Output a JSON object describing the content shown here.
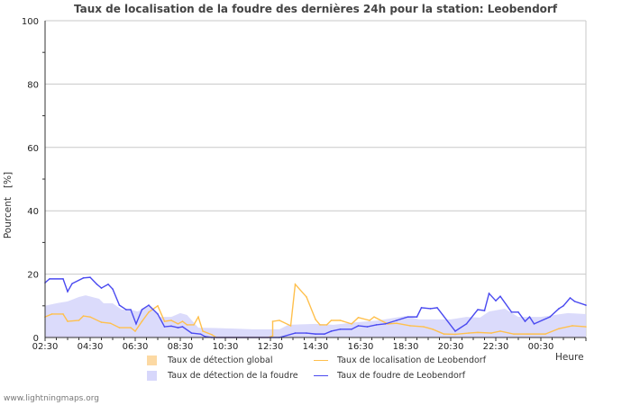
{
  "chart_data": {
    "type": "line",
    "title": "Taux de localisation de la foudre des dernières 24h pour la station: Leobendorf",
    "ylabel": "Pourcent   [%]",
    "xlabel": "Heure",
    "ylim": [
      0,
      100
    ],
    "yticks": [
      "0",
      "20",
      "40",
      "60",
      "80",
      "100"
    ],
    "xlim_hours_from_start": [
      0,
      24
    ],
    "xticks": [
      "02:30",
      "04:30",
      "06:30",
      "08:30",
      "10:30",
      "12:30",
      "14:30",
      "16:30",
      "18:30",
      "20:30",
      "22:30",
      "00:30"
    ],
    "grid": true,
    "legend": [
      {
        "label": "Taux de détection global",
        "kind": "area",
        "color": "#fcd9a3"
      },
      {
        "label": "Taux de localisation de Leobendorf",
        "kind": "line",
        "color": "#ffc04d"
      },
      {
        "label": "Taux de détection de la foudre",
        "kind": "area",
        "color": "#d7d7fb"
      },
      {
        "label": "Taux de foudre de Leobendorf",
        "kind": "line",
        "color": "#4a4af0"
      }
    ],
    "series": [
      {
        "name": "Taux de détection global",
        "type": "area",
        "color": "#e8c9b4",
        "points": [
          [
            0,
            0.7
          ],
          [
            4,
            0.7
          ],
          [
            8,
            0.6
          ],
          [
            12,
            0.5
          ],
          [
            16,
            0.6
          ],
          [
            20,
            0.5
          ],
          [
            24,
            0.6
          ]
        ]
      },
      {
        "name": "Taux de détection de la foudre",
        "type": "area",
        "color": "#d7d7fb",
        "points": [
          [
            0,
            10
          ],
          [
            0.5,
            10.8
          ],
          [
            1,
            11.4
          ],
          [
            1.5,
            12.8
          ],
          [
            1.8,
            13.3
          ],
          [
            2.4,
            12.2
          ],
          [
            2.6,
            10.8
          ],
          [
            3,
            10.8
          ],
          [
            3.4,
            8.8
          ],
          [
            3.8,
            8.8
          ],
          [
            4.1,
            8.2
          ],
          [
            4.6,
            10
          ],
          [
            5.1,
            6.5
          ],
          [
            5.6,
            6.5
          ],
          [
            6,
            7.7
          ],
          [
            6.3,
            7.1
          ],
          [
            6.8,
            3.1
          ],
          [
            7.6,
            3
          ],
          [
            9.2,
            2.6
          ],
          [
            10.4,
            2.6
          ],
          [
            10.8,
            4
          ],
          [
            12,
            4.3
          ],
          [
            12.8,
            4
          ],
          [
            13.8,
            4.8
          ],
          [
            14.8,
            5.4
          ],
          [
            16,
            6.8
          ],
          [
            16.6,
            5.7
          ],
          [
            18,
            5.7
          ],
          [
            18.7,
            6.5
          ],
          [
            19.3,
            6.3
          ],
          [
            19.7,
            8.2
          ],
          [
            20.4,
            9.1
          ],
          [
            21,
            6.5
          ],
          [
            22,
            6.5
          ],
          [
            23.2,
            7.7
          ],
          [
            24,
            7.4
          ]
        ]
      },
      {
        "name": "Taux de localisation de Leobendorf",
        "type": "line",
        "color": "#ffc04d",
        "points": [
          [
            0,
            6.5
          ],
          [
            0.3,
            7.4
          ],
          [
            0.8,
            7.4
          ],
          [
            1,
            5.1
          ],
          [
            1.5,
            5.4
          ],
          [
            1.7,
            6.8
          ],
          [
            2,
            6.5
          ],
          [
            2.5,
            4.8
          ],
          [
            2.9,
            4.5
          ],
          [
            3.3,
            3.1
          ],
          [
            3.8,
            3.1
          ],
          [
            4,
            2
          ],
          [
            4.3,
            5.1
          ],
          [
            4.6,
            8
          ],
          [
            5,
            10
          ],
          [
            5.3,
            5.1
          ],
          [
            5.6,
            5.4
          ],
          [
            5.9,
            4.3
          ],
          [
            6.1,
            5.1
          ],
          [
            6.3,
            4
          ],
          [
            6.6,
            4
          ],
          [
            6.8,
            6.5
          ],
          [
            7,
            2
          ],
          [
            7.4,
            0.9
          ],
          [
            7.6,
            0
          ],
          [
            9.9,
            0
          ],
          [
            10.1,
            0.5
          ],
          [
            10.1,
            5.1
          ],
          [
            10.4,
            5.4
          ],
          [
            10.9,
            3.7
          ],
          [
            11.1,
            16.8
          ],
          [
            11.6,
            12.8
          ],
          [
            12,
            5.7
          ],
          [
            12.2,
            4
          ],
          [
            12.5,
            4
          ],
          [
            12.7,
            5.4
          ],
          [
            13.1,
            5.4
          ],
          [
            13.6,
            4.3
          ],
          [
            13.9,
            6.3
          ],
          [
            14.4,
            5.4
          ],
          [
            14.6,
            6.5
          ],
          [
            15.2,
            4.3
          ],
          [
            15.6,
            4.5
          ],
          [
            16.2,
            3.7
          ],
          [
            16.8,
            3.4
          ],
          [
            17.2,
            2.6
          ],
          [
            17.7,
            1.1
          ],
          [
            18.2,
            1
          ],
          [
            18.8,
            1.4
          ],
          [
            19.2,
            1.6
          ],
          [
            19.8,
            1.4
          ],
          [
            20.2,
            2
          ],
          [
            20.8,
            1.1
          ],
          [
            21.4,
            1.1
          ],
          [
            22.2,
            1.1
          ],
          [
            22.8,
            2.8
          ],
          [
            23.4,
            3.7
          ],
          [
            24,
            3.4
          ]
        ]
      },
      {
        "name": "Taux de foudre de Leobendorf",
        "type": "line",
        "color": "#4a4af0",
        "points": [
          [
            0,
            17.3
          ],
          [
            0.2,
            18.5
          ],
          [
            0.8,
            18.5
          ],
          [
            1,
            14.5
          ],
          [
            1.2,
            17
          ],
          [
            1.7,
            18.8
          ],
          [
            2,
            19
          ],
          [
            2.3,
            16.8
          ],
          [
            2.5,
            15.6
          ],
          [
            2.8,
            16.8
          ],
          [
            3,
            15.3
          ],
          [
            3.3,
            10.2
          ],
          [
            3.6,
            8.8
          ],
          [
            3.8,
            8.8
          ],
          [
            4.04,
            4.3
          ],
          [
            4.3,
            8.8
          ],
          [
            4.6,
            10.2
          ],
          [
            4.8,
            8.8
          ],
          [
            5,
            7.4
          ],
          [
            5.3,
            3.4
          ],
          [
            5.6,
            3.6
          ],
          [
            5.9,
            3.1
          ],
          [
            6.1,
            3.4
          ],
          [
            6.5,
            1.4
          ],
          [
            6.9,
            1.1
          ],
          [
            7.1,
            0.3
          ],
          [
            7.4,
            0
          ],
          [
            10.4,
            0
          ],
          [
            11.1,
            1.4
          ],
          [
            11.6,
            1.4
          ],
          [
            12,
            1.1
          ],
          [
            12.4,
            1.1
          ],
          [
            12.7,
            2
          ],
          [
            13.1,
            2.6
          ],
          [
            13.6,
            2.6
          ],
          [
            13.9,
            3.7
          ],
          [
            14.3,
            3.4
          ],
          [
            14.7,
            4
          ],
          [
            15.1,
            4.3
          ],
          [
            15.6,
            5.4
          ],
          [
            16.1,
            6.5
          ],
          [
            16.5,
            6.5
          ],
          [
            16.7,
            9.4
          ],
          [
            17.1,
            9.1
          ],
          [
            17.4,
            9.4
          ],
          [
            18.2,
            2
          ],
          [
            18.7,
            4.3
          ],
          [
            19.2,
            8.8
          ],
          [
            19.5,
            8.5
          ],
          [
            19.7,
            13.9
          ],
          [
            20,
            11.6
          ],
          [
            20.2,
            13
          ],
          [
            20.7,
            8
          ],
          [
            21,
            8
          ],
          [
            21.3,
            5.1
          ],
          [
            21.5,
            6.5
          ],
          [
            21.7,
            4.3
          ],
          [
            22.4,
            6.5
          ],
          [
            22.8,
            9.1
          ],
          [
            23,
            10
          ],
          [
            23.3,
            12.5
          ],
          [
            23.5,
            11.4
          ],
          [
            24,
            10.2
          ]
        ]
      }
    ]
  },
  "footer": "www.lightningmaps.org"
}
